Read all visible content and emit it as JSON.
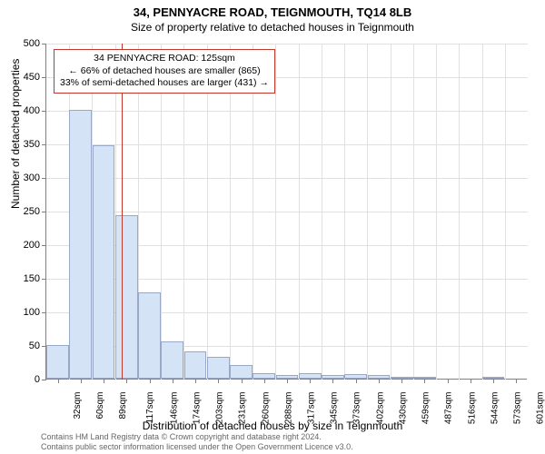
{
  "chart": {
    "type": "histogram",
    "title_main": "34, PENNYACRE ROAD, TEIGNMOUTH, TQ14 8LB",
    "title_sub": "Size of property relative to detached houses in Teignmouth",
    "ylabel": "Number of detached properties",
    "xlabel": "Distribution of detached houses by size in Teignmouth",
    "ylim": [
      0,
      500
    ],
    "ytick_step": 50,
    "yticks": [
      0,
      50,
      100,
      150,
      200,
      250,
      300,
      350,
      400,
      450,
      500
    ],
    "xticks": [
      "32sqm",
      "60sqm",
      "89sqm",
      "117sqm",
      "146sqm",
      "174sqm",
      "203sqm",
      "231sqm",
      "260sqm",
      "288sqm",
      "317sqm",
      "345sqm",
      "373sqm",
      "402sqm",
      "430sqm",
      "459sqm",
      "487sqm",
      "516sqm",
      "544sqm",
      "573sqm",
      "601sqm"
    ],
    "bars": [
      {
        "value": 50
      },
      {
        "value": 400
      },
      {
        "value": 347
      },
      {
        "value": 243
      },
      {
        "value": 128
      },
      {
        "value": 55
      },
      {
        "value": 40
      },
      {
        "value": 33
      },
      {
        "value": 20
      },
      {
        "value": 8
      },
      {
        "value": 6
      },
      {
        "value": 8
      },
      {
        "value": 5
      },
      {
        "value": 7
      },
      {
        "value": 6
      },
      {
        "value": 3
      },
      {
        "value": 2
      },
      {
        "value": 0
      },
      {
        "value": 0
      },
      {
        "value": 2
      },
      {
        "value": 0
      }
    ],
    "bar_fill": "#d5e3f6",
    "bar_stroke": "#9aa8c7",
    "grid_color": "#e0e0e0",
    "background_color": "#ffffff",
    "reference_line": {
      "value_sqm": 125,
      "color": "#c0392b",
      "position_index": 3.28
    },
    "callout": {
      "line1": "34 PENNYACRE ROAD: 125sqm",
      "line2": "← 66% of detached houses are smaller (865)",
      "line3": "33% of semi-detached houses are larger (431) →",
      "border_color": "#c0392b"
    },
    "attribution": {
      "line1": "Contains HM Land Registry data © Crown copyright and database right 2024.",
      "line2": "Contains public sector information licensed under the Open Government Licence v3.0."
    },
    "title_fontsize": 13,
    "label_fontsize": 12,
    "tick_fontsize": 11
  }
}
